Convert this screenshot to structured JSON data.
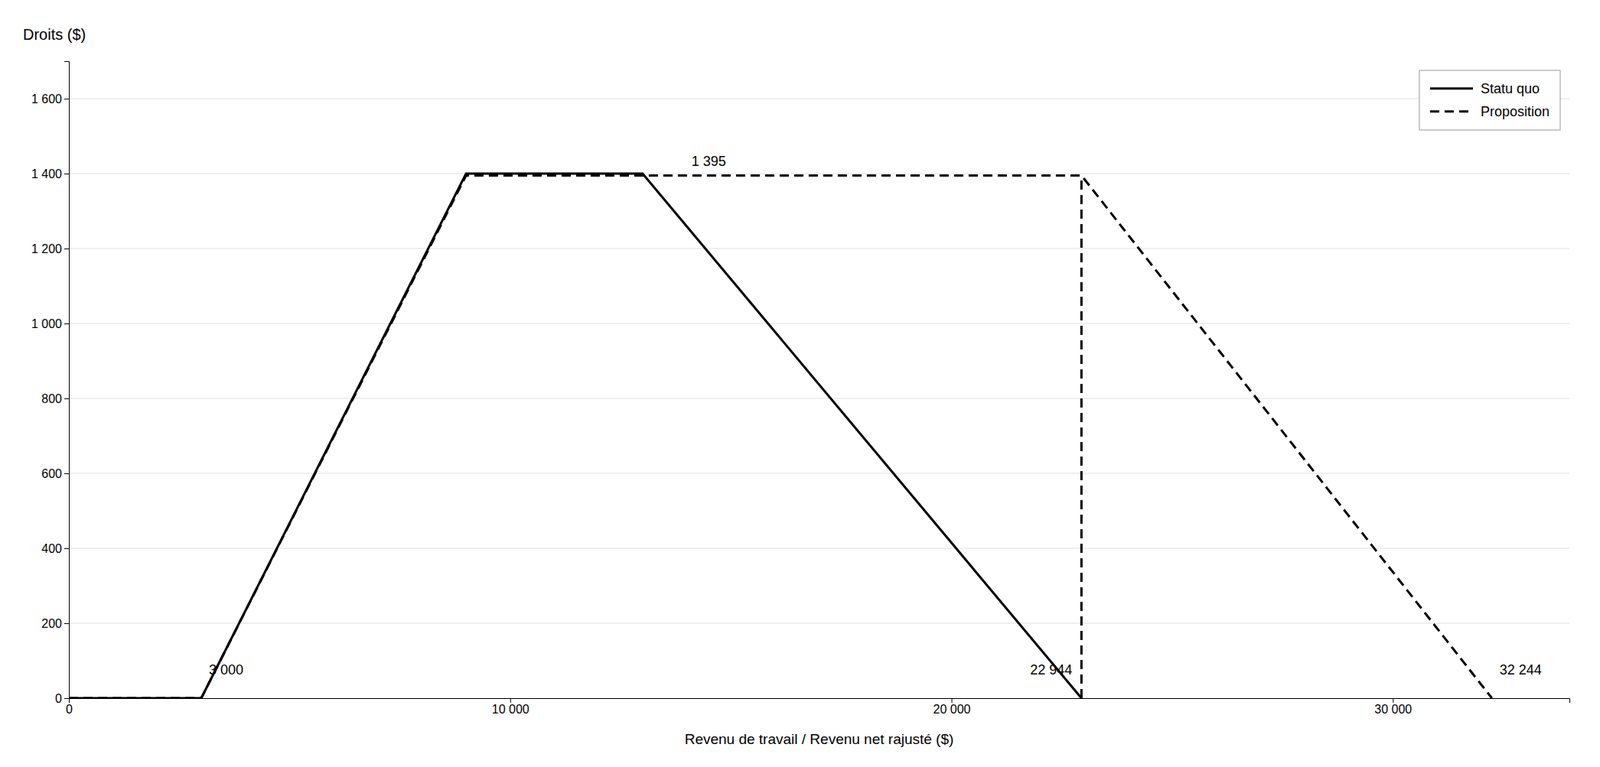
{
  "chart_data": {
    "type": "line",
    "xlabel": "Revenu de travail / Revenu net rajusté ($)",
    "ylabel": "Droits ($)",
    "xlim": [
      0,
      34000
    ],
    "ylim": [
      0,
      1700
    ],
    "xticks": [
      0,
      {
        "value": 10000,
        "label": "10 000"
      },
      {
        "value": 20000,
        "label": "20 000"
      },
      {
        "value": 30000,
        "label": "30 000"
      }
    ],
    "yticks": [
      0,
      200,
      400,
      600,
      800,
      {
        "value": 1000,
        "label": "1 000"
      },
      {
        "value": 1200,
        "label": "1 200"
      },
      {
        "value": 1400,
        "label": "1 400"
      },
      {
        "value": 1600,
        "label": "1 600"
      }
    ],
    "grid": "y",
    "legend": "upper right",
    "series": [
      {
        "name": "Statu quo",
        "color": "#000000",
        "line_style": "solid",
        "x": [
          0,
          3000,
          9000,
          13000,
          22944,
          22944
        ],
        "values": [
          0,
          0,
          1400,
          1400,
          0,
          0
        ]
      },
      {
        "name": "Proposition",
        "color": "#000000",
        "line_style": "dashed",
        "x": [
          0,
          3000,
          9000,
          22944,
          32244
        ],
        "values": [
          0,
          0,
          1395,
          1395,
          0
        ]
      }
    ],
    "vlines": [
      {
        "x": 22944,
        "y": [
          0,
          1395
        ],
        "color": "#000000",
        "line_style": "dashed"
      }
    ],
    "annotations": [
      {
        "text": "3 000",
        "x": 3000,
        "y": 55
      },
      {
        "text": "22 944",
        "x": 22944,
        "y": 55
      },
      {
        "text": "32 244",
        "x": 32244,
        "y": 55
      },
      {
        "text": "1 395",
        "x": 14500,
        "y": 1395
      }
    ]
  }
}
